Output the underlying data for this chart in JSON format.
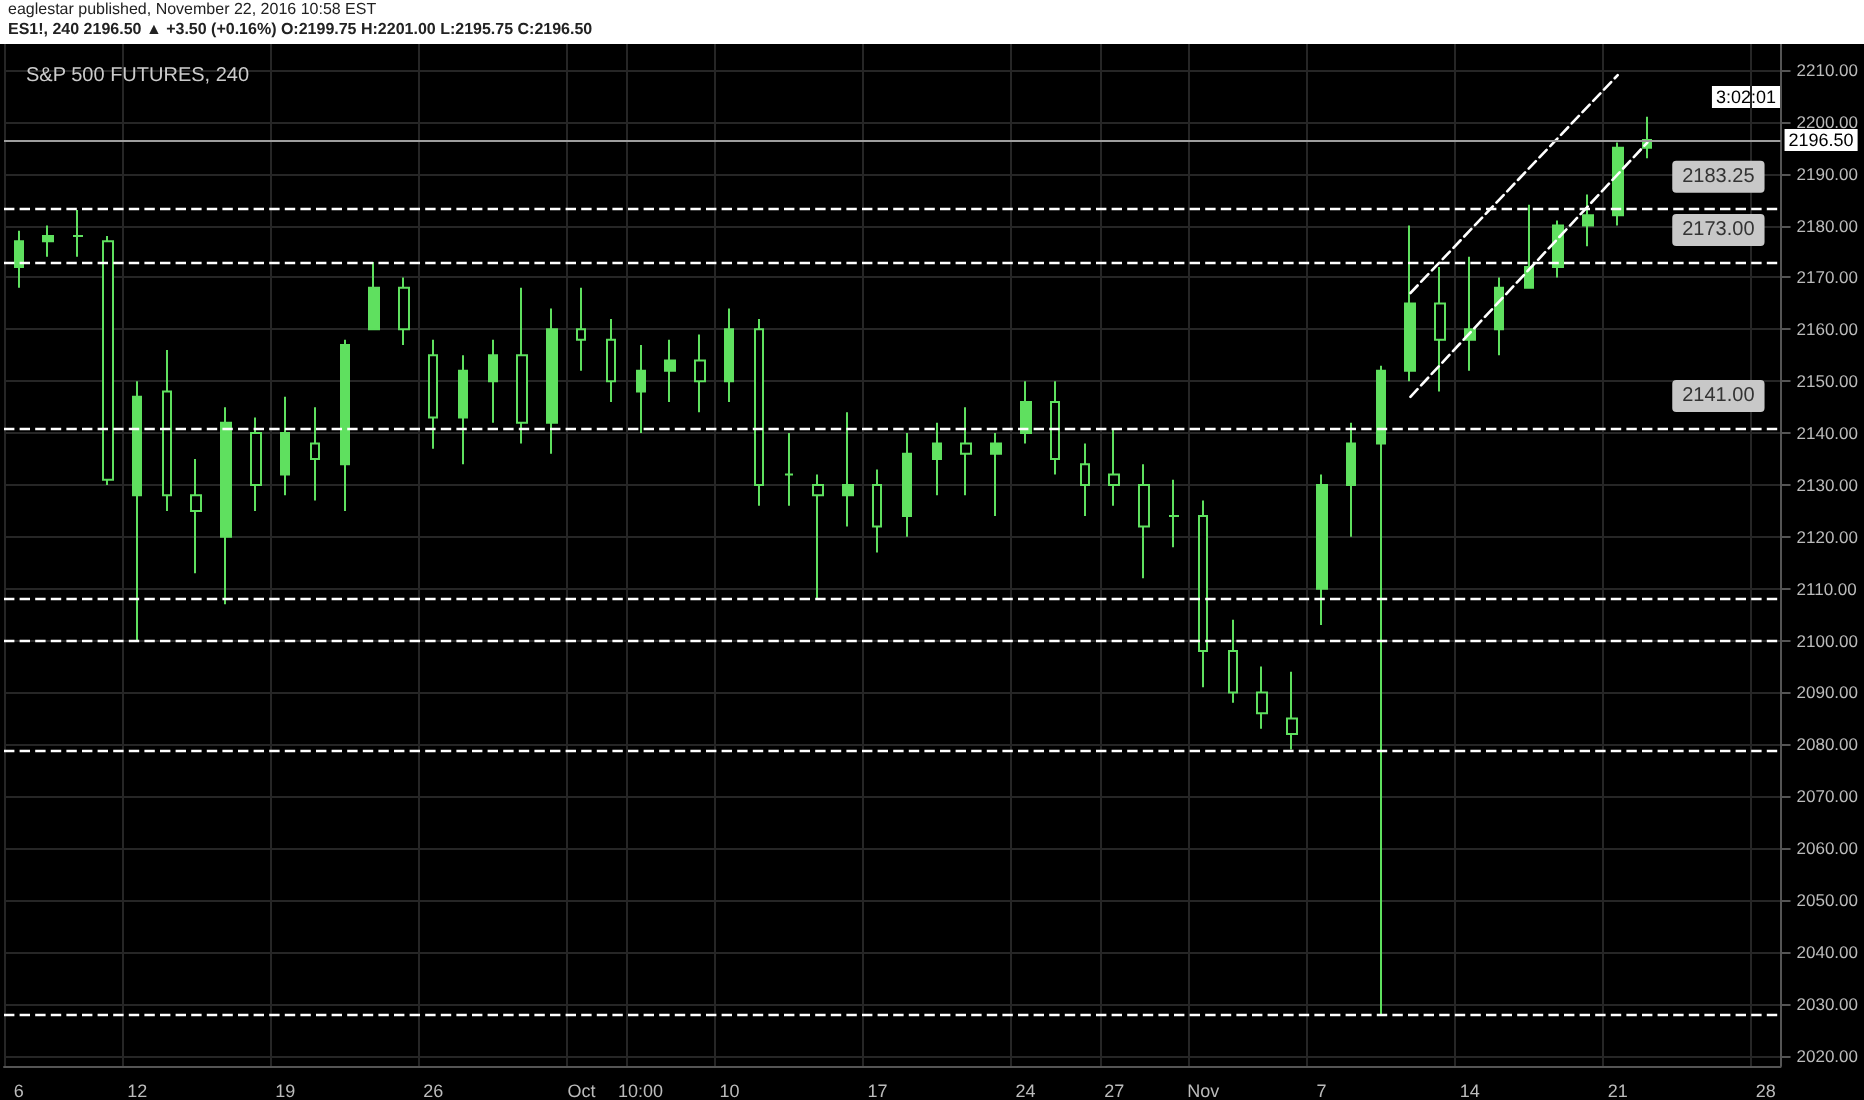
{
  "chart_data": {
    "type": "candlestick",
    "title": "S&P 500 FUTURES, 240",
    "annotations": [
      "eaglestar published, November 22, 2016 10:58 EST",
      "ES1!, 240  2196.50 ▲ +3.50 (+0.16%)  O:2199.75  H:2201.00  L:2195.75  C:2196.50",
      "3:02:01"
    ],
    "categories": [
      "6",
      null,
      null,
      null,
      "12",
      null,
      null,
      null,
      null,
      "19",
      null,
      null,
      null,
      null,
      "26",
      null,
      null,
      null,
      null,
      "Oct",
      null,
      "10:00",
      null,
      null,
      "10",
      null,
      null,
      null,
      null,
      "17",
      null,
      null,
      null,
      null,
      "24",
      null,
      null,
      "27",
      null,
      null,
      "Nov",
      null,
      null,
      null,
      "7",
      null,
      null,
      null,
      null,
      "14",
      null,
      null,
      null,
      null,
      "21",
      null,
      null,
      null,
      null,
      "28"
    ],
    "series": [
      {
        "color": "#5fe05f",
        "ohlc": [
          [
            2172,
            2179,
            2168,
            2177
          ],
          [
            2177,
            2180,
            2174,
            2178
          ],
          [
            2178,
            2183,
            2174,
            2178
          ],
          [
            2177,
            2178,
            2130,
            2131
          ],
          [
            2128,
            2150,
            2100,
            2147
          ],
          [
            2148,
            2156,
            2125,
            2128
          ],
          [
            2128,
            2135,
            2113,
            2125
          ],
          [
            2120,
            2145,
            2107,
            2142
          ],
          [
            2140,
            2143,
            2125,
            2130
          ],
          [
            2132,
            2147,
            2128,
            2140
          ],
          [
            2138,
            2145,
            2127,
            2135
          ],
          [
            2134,
            2158,
            2125,
            2157
          ],
          [
            2160,
            2173,
            2160,
            2168
          ],
          [
            2168,
            2170,
            2157,
            2160
          ],
          [
            2155,
            2158,
            2137,
            2143
          ],
          [
            2143,
            2155,
            2134,
            2152
          ],
          [
            2150,
            2158,
            2142,
            2155
          ],
          [
            2155,
            2168,
            2138,
            2142
          ],
          [
            2142,
            2164,
            2136,
            2160
          ],
          [
            2160,
            2168,
            2152,
            2158
          ],
          [
            2158,
            2162,
            2146,
            2150
          ],
          [
            2148,
            2157,
            2140,
            2152
          ],
          [
            2152,
            2158,
            2146,
            2154
          ],
          [
            2154,
            2159,
            2144,
            2150
          ],
          [
            2150,
            2164,
            2146,
            2160
          ],
          [
            2160,
            2162,
            2126,
            2130
          ],
          [
            2132,
            2140,
            2126,
            2132
          ],
          [
            2130,
            2132,
            2108,
            2128
          ],
          [
            2128,
            2144,
            2122,
            2130
          ],
          [
            2130,
            2133,
            2117,
            2122
          ],
          [
            2124,
            2140,
            2120,
            2136
          ],
          [
            2135,
            2142,
            2128,
            2138
          ],
          [
            2138,
            2145,
            2128,
            2136
          ],
          [
            2136,
            2140,
            2124,
            2138
          ],
          [
            2140,
            2150,
            2138,
            2146
          ],
          [
            2146,
            2150,
            2132,
            2135
          ],
          [
            2134,
            2138,
            2124,
            2130
          ],
          [
            2132,
            2141,
            2126,
            2130
          ],
          [
            2130,
            2134,
            2112,
            2122
          ],
          [
            2124,
            2131,
            2118,
            2124
          ],
          [
            2124,
            2127,
            2091,
            2098
          ],
          [
            2098,
            2104,
            2088,
            2090
          ],
          [
            2090,
            2095,
            2083,
            2086
          ],
          [
            2085,
            2094,
            2079,
            2082
          ],
          [
            2110,
            2132,
            2103,
            2130
          ],
          [
            2130,
            2142,
            2120,
            2138
          ],
          [
            2138,
            2153,
            2028,
            2152
          ],
          [
            2152,
            2180,
            2150,
            2165
          ],
          [
            2165,
            2172,
            2148,
            2158
          ],
          [
            2158,
            2174,
            2152,
            2160
          ],
          [
            2160,
            2170,
            2155,
            2168
          ],
          [
            2168,
            2184,
            2168,
            2172
          ],
          [
            2172,
            2181,
            2170,
            2180
          ],
          [
            2180,
            2186,
            2176,
            2182
          ],
          [
            2182,
            2196,
            2180,
            2195
          ],
          [
            2195,
            2201,
            2193,
            2196.5
          ],
          null,
          null,
          null,
          null
        ]
      },
      {
        "type": "line",
        "color": "#ffffff",
        "line_style": "dashed",
        "values": [
          null,
          null,
          null,
          null,
          null,
          null,
          null,
          null,
          null,
          null,
          null,
          null,
          null,
          null,
          null,
          null,
          null,
          null,
          null,
          null,
          null,
          null,
          null,
          null,
          null,
          null,
          null,
          null,
          null,
          null,
          null,
          null,
          null,
          null,
          null,
          null,
          null,
          null,
          null,
          null,
          null,
          null,
          null,
          null,
          null,
          null,
          null,
          2167,
          null,
          null,
          null,
          null,
          null,
          null,
          2209,
          null,
          null,
          null,
          null,
          null
        ]
      },
      {
        "type": "line",
        "color": "#ffffff",
        "line_style": "dashed",
        "values": [
          null,
          null,
          null,
          null,
          null,
          null,
          null,
          null,
          null,
          null,
          null,
          null,
          null,
          null,
          null,
          null,
          null,
          null,
          null,
          null,
          null,
          null,
          null,
          null,
          null,
          null,
          null,
          null,
          null,
          null,
          null,
          null,
          null,
          null,
          null,
          null,
          null,
          null,
          null,
          null,
          null,
          null,
          null,
          null,
          null,
          null,
          null,
          2147,
          null,
          null,
          null,
          null,
          null,
          null,
          null,
          2196,
          null,
          null,
          null,
          null
        ]
      }
    ],
    "ref_lines": [
      {
        "axis": "y",
        "value": 2196.5,
        "label": "2196.50",
        "line_style": "solid",
        "color": "#9e9e9e"
      },
      {
        "axis": "y",
        "value": 2183.25,
        "label": "2183.25",
        "line_style": "dashed",
        "color": "#ffffff"
      },
      {
        "axis": "y",
        "value": 2173,
        "label": "2173.00",
        "line_style": "dashed",
        "color": "#ffffff"
      },
      {
        "axis": "y",
        "value": 2141,
        "label": "2141.00",
        "line_style": "dashed",
        "color": "#ffffff"
      },
      {
        "axis": "y",
        "value": 2108,
        "line_style": "dashed",
        "color": "#ffffff"
      },
      {
        "axis": "y",
        "value": 2100,
        "line_style": "dashed",
        "color": "#ffffff"
      },
      {
        "axis": "y",
        "value": 2079,
        "line_style": "dashed",
        "color": "#ffffff"
      },
      {
        "axis": "y",
        "value": 2028,
        "line_style": "dashed",
        "color": "#ffffff"
      }
    ],
    "ylim": [
      2018,
      2215
    ],
    "yticks": [
      {
        "value": 2020,
        "label": "2020.00"
      },
      {
        "value": 2030,
        "label": "2030.00"
      },
      {
        "value": 2040,
        "label": "2040.00"
      },
      {
        "value": 2050,
        "label": "2050.00"
      },
      {
        "value": 2060,
        "label": "2060.00"
      },
      {
        "value": 2070,
        "label": "2070.00"
      },
      {
        "value": 2080,
        "label": "2080.00"
      },
      {
        "value": 2090,
        "label": "2090.00"
      },
      {
        "value": 2100,
        "label": "2100.00"
      },
      {
        "value": 2110,
        "label": "2110.00"
      },
      {
        "value": 2120,
        "label": "2120.00"
      },
      {
        "value": 2130,
        "label": "2130.00"
      },
      {
        "value": 2140,
        "label": "2140.00"
      },
      {
        "value": 2150,
        "label": "2150.00"
      },
      {
        "value": 2160,
        "label": "2160.00"
      },
      {
        "value": 2170,
        "label": "2170.00"
      },
      {
        "value": 2180,
        "label": "2180.00"
      },
      {
        "value": 2190,
        "label": "2190.00"
      },
      {
        "value": 2200,
        "label": "2200.00"
      },
      {
        "value": 2210,
        "label": "2210.00"
      }
    ],
    "grid": true,
    "marker": "none"
  }
}
